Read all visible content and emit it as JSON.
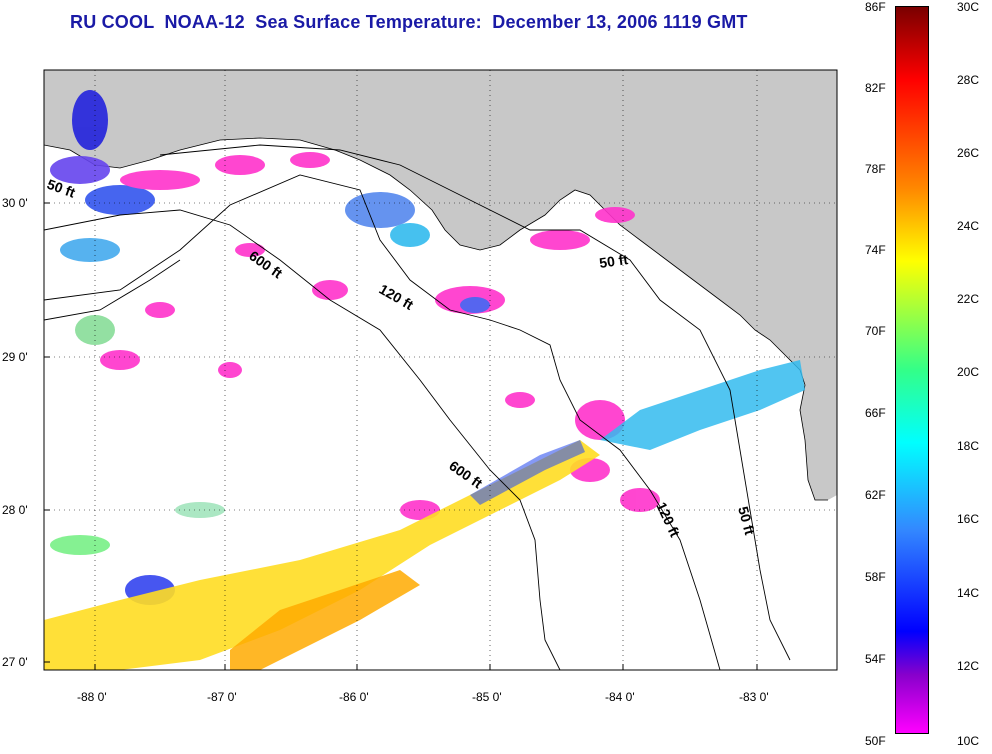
{
  "title": "RU COOL  NOAA-12  Sea Surface Temperature:  December 13, 2006 1119 GMT",
  "map": {
    "lat_labels": [
      "30 0'",
      "29 0'",
      "28 0'",
      "27 0'"
    ],
    "lon_labels": [
      "-88 0'",
      "-87 0'",
      "-86 0'",
      "-85 0'",
      "-84 0'",
      "-83 0'"
    ],
    "contour_labels": [
      "50 ft",
      "600 ft",
      "120 ft",
      "50 ft",
      "600 ft",
      "120 ft",
      "50 ft"
    ]
  },
  "colorbar": {
    "fahrenheit_labels": [
      "86F",
      "82F",
      "78F",
      "74F",
      "70F",
      "66F",
      "62F",
      "58F",
      "54F",
      "50F"
    ],
    "celsius_labels": [
      "30C",
      "28C",
      "26C",
      "24C",
      "22C",
      "20C",
      "18C",
      "16C",
      "14C",
      "12C",
      "10C"
    ]
  },
  "colors": {
    "title": "#1a1aa6",
    "land": "#c8c8c8",
    "water": "#ffffff",
    "cold": "#ff00cc",
    "warm": "#ff8800"
  }
}
